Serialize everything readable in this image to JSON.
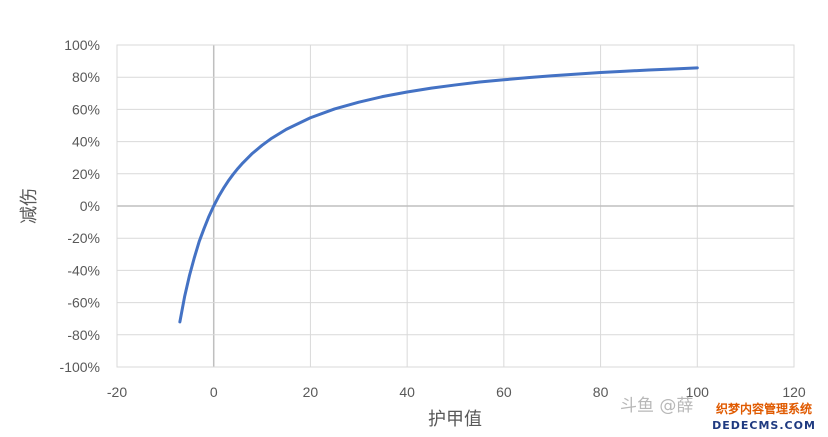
{
  "chart_data": {
    "type": "line",
    "title": "",
    "xlabel": "护甲值",
    "ylabel": "减伤",
    "xlim": [
      -20,
      120
    ],
    "ylim": [
      -1.0,
      1.0
    ],
    "x_ticks": [
      -20,
      0,
      20,
      40,
      60,
      80,
      100,
      120
    ],
    "y_ticks": [
      "100%",
      "80%",
      "60%",
      "40%",
      "20%",
      "0%",
      "-20%",
      "-40%",
      "-60%",
      "-80%",
      "-100%"
    ],
    "grid": true,
    "legend": "none",
    "series": [
      {
        "color": "#4472C4",
        "points": [
          [
            -7,
            -0.72
          ],
          [
            -6,
            -0.56
          ],
          [
            -5,
            -0.43
          ],
          [
            -4,
            -0.32
          ],
          [
            -3,
            -0.22
          ],
          [
            -2,
            -0.14
          ],
          [
            -1,
            -0.065
          ],
          [
            0,
            0.0
          ],
          [
            1,
            0.058
          ],
          [
            2,
            0.109
          ],
          [
            3,
            0.155
          ],
          [
            4,
            0.196
          ],
          [
            5,
            0.233
          ],
          [
            6,
            0.267
          ],
          [
            8,
            0.327
          ],
          [
            10,
            0.377
          ],
          [
            12,
            0.421
          ],
          [
            15,
            0.476
          ],
          [
            20,
            0.548
          ],
          [
            25,
            0.603
          ],
          [
            30,
            0.645
          ],
          [
            35,
            0.68
          ],
          [
            40,
            0.708
          ],
          [
            45,
            0.732
          ],
          [
            50,
            0.752
          ],
          [
            55,
            0.77
          ],
          [
            60,
            0.784
          ],
          [
            65,
            0.797
          ],
          [
            70,
            0.809
          ],
          [
            75,
            0.819
          ],
          [
            80,
            0.829
          ],
          [
            85,
            0.837
          ],
          [
            90,
            0.845
          ],
          [
            95,
            0.851
          ],
          [
            100,
            0.858
          ]
        ]
      }
    ]
  },
  "watermark": {
    "left_text": "斗鱼 @薛",
    "right_top": "织梦内容管理系统",
    "right_bottom": "DEDECMS.COM"
  }
}
